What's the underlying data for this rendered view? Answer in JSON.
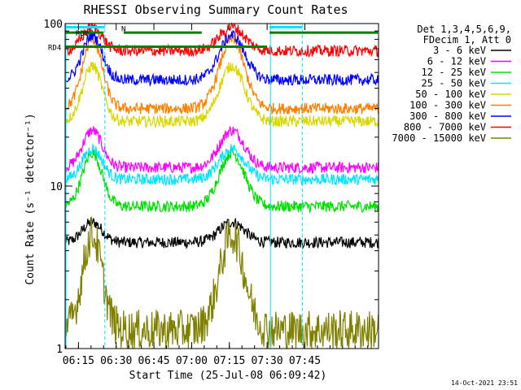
{
  "chart_data": {
    "type": "line",
    "title": "RHESSI Observing Summary Count Rates",
    "xlabel": "Start Time (25-Jul-08 06:09:42)",
    "ylabel": "Count Rate (s⁻¹ detector⁻¹)",
    "yscale": "log",
    "ylim": [
      1,
      100
    ],
    "xlim_min": [
      9.7,
      134.3
    ],
    "x_ticks": [
      {
        "min": 15,
        "label": "06:15"
      },
      {
        "min": 30,
        "label": "06:30"
      },
      {
        "min": 45,
        "label": "06:45"
      },
      {
        "min": 60,
        "label": "07:00"
      },
      {
        "min": 75,
        "label": "07:15"
      },
      {
        "min": 90,
        "label": "07:30"
      },
      {
        "min": 105,
        "label": "07:45"
      }
    ],
    "y_ticks": [
      {
        "value": 1,
        "label": "1"
      },
      {
        "value": 10,
        "label": "10"
      },
      {
        "value": 100,
        "label": "100"
      }
    ],
    "legend_header": [
      "Det 1,3,4,5,6,9,",
      "FDecim 1, Att 0"
    ],
    "legend_position": "right",
    "series": [
      {
        "name": "3 - 6 keV",
        "color": "#000000",
        "base": 4.5,
        "peak": 6.0
      },
      {
        "name": "6 - 12 keV",
        "color": "#ff00ff",
        "base": 13,
        "peak": 22
      },
      {
        "name": "12 - 25 keV",
        "color": "#00e000",
        "base": 7.5,
        "peak": 16
      },
      {
        "name": "25 - 50 keV",
        "color": "#00e5ff",
        "base": 11,
        "peak": 17
      },
      {
        "name": "50 - 100 keV",
        "color": "#d8d800",
        "base": 25,
        "peak": 55
      },
      {
        "name": "100 - 300 keV",
        "color": "#ff8000",
        "base": 30,
        "peak": 80
      },
      {
        "name": "300 - 800 keV",
        "color": "#0000ff",
        "base": 45,
        "peak": 85
      },
      {
        "name": "800 - 7000 keV",
        "color": "#ff0000",
        "base": 68,
        "peak": 95
      },
      {
        "name": "7000 - 15000 keV",
        "color": "#808000",
        "base": 1.3,
        "peak": 5
      }
    ],
    "annotations": [
      {
        "text": "RD0",
        "value": 88,
        "color": "#008000"
      },
      {
        "text": "RD4",
        "value": 72,
        "color": "#008000"
      },
      {
        "text": "N",
        "value": 95,
        "color": "#00e5ff"
      }
    ],
    "saa_intervals_min": [
      [
        9.7,
        25.5
      ],
      [
        91,
        104
      ]
    ],
    "footer_timestamp": "14-Oct-2021 23:51"
  },
  "colors": {
    "background": "#ffffff",
    "axis": "#000000",
    "night": "#00e5ff",
    "decimation": "#008000"
  }
}
